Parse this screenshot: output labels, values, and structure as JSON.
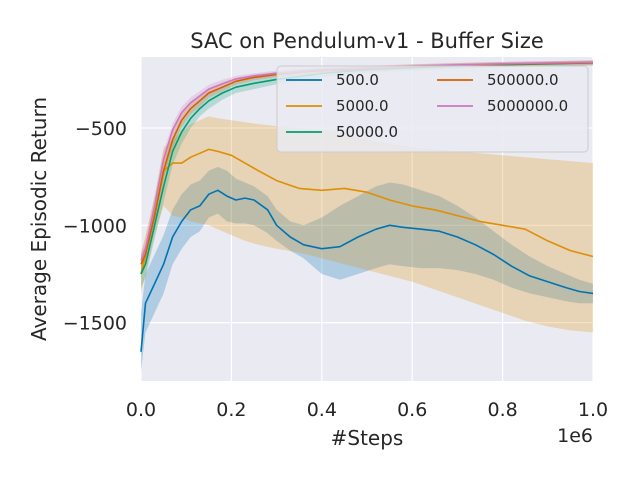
{
  "chart_data": {
    "type": "line",
    "title": "SAC on Pendulum-v1 - Buffer Size",
    "xlabel": "#Steps",
    "ylabel": "Average Episodic Return",
    "x_multiplier_label": "1e6",
    "xlim": [
      0.0,
      1.0
    ],
    "ylim": [
      -1800,
      -135
    ],
    "xticks": [
      0.0,
      0.2,
      0.4,
      0.6,
      0.8,
      1.0
    ],
    "xtick_labels": [
      "0.0",
      "0.2",
      "0.4",
      "0.6",
      "0.8",
      "1.0"
    ],
    "yticks": [
      -500,
      -1000,
      -1500
    ],
    "ytick_labels": [
      "−500",
      "−1000",
      "−1500"
    ],
    "legend_position": "top-right",
    "grid": true,
    "series": [
      {
        "name": "500.0",
        "color": "#0173b2",
        "x": [
          0.0,
          0.01,
          0.03,
          0.05,
          0.07,
          0.09,
          0.11,
          0.13,
          0.15,
          0.17,
          0.19,
          0.21,
          0.23,
          0.25,
          0.28,
          0.3,
          0.33,
          0.36,
          0.4,
          0.44,
          0.48,
          0.52,
          0.55,
          0.58,
          0.62,
          0.66,
          0.7,
          0.74,
          0.78,
          0.82,
          0.86,
          0.9,
          0.94,
          0.97,
          1.0
        ],
        "y": [
          -1650,
          -1400,
          -1300,
          -1200,
          -1060,
          -980,
          -920,
          -900,
          -840,
          -820,
          -850,
          -870,
          -860,
          -870,
          -920,
          -1000,
          -1060,
          -1100,
          -1120,
          -1110,
          -1060,
          -1020,
          -1000,
          -1010,
          -1020,
          -1030,
          -1060,
          -1100,
          -1150,
          -1210,
          -1260,
          -1290,
          -1320,
          -1340,
          -1350
        ],
        "band_upper": [
          -1450,
          -1250,
          -1150,
          -1050,
          -920,
          -840,
          -790,
          -770,
          -720,
          -700,
          -720,
          -760,
          -780,
          -800,
          -850,
          -920,
          -980,
          -1000,
          -960,
          -900,
          -850,
          -800,
          -780,
          -790,
          -820,
          -850,
          -900,
          -960,
          -1030,
          -1100,
          -1160,
          -1210,
          -1250,
          -1280,
          -1300
        ],
        "band_lower": [
          -1750,
          -1550,
          -1450,
          -1350,
          -1200,
          -1120,
          -1060,
          -1030,
          -960,
          -940,
          -980,
          -990,
          -990,
          -1000,
          -1040,
          -1080,
          -1130,
          -1170,
          -1250,
          -1280,
          -1250,
          -1220,
          -1200,
          -1210,
          -1220,
          -1220,
          -1230,
          -1250,
          -1280,
          -1320,
          -1350,
          -1370,
          -1390,
          -1400,
          -1400
        ]
      },
      {
        "name": "5000.0",
        "color": "#de8f05",
        "x": [
          0.0,
          0.01,
          0.03,
          0.05,
          0.07,
          0.09,
          0.11,
          0.13,
          0.15,
          0.17,
          0.2,
          0.23,
          0.26,
          0.3,
          0.35,
          0.4,
          0.45,
          0.5,
          0.55,
          0.6,
          0.65,
          0.7,
          0.75,
          0.8,
          0.85,
          0.9,
          0.95,
          1.0
        ],
        "y": [
          -1250,
          -1150,
          -950,
          -720,
          -680,
          -680,
          -650,
          -630,
          -610,
          -620,
          -640,
          -680,
          -720,
          -770,
          -810,
          -820,
          -810,
          -830,
          -870,
          -900,
          -920,
          -950,
          -980,
          -1000,
          -1020,
          -1080,
          -1130,
          -1160
        ],
        "band_upper": [
          -1150,
          -1050,
          -850,
          -600,
          -560,
          -520,
          -480,
          -460,
          -440,
          -450,
          -460,
          -470,
          -480,
          -490,
          -500,
          -510,
          -530,
          -560,
          -580,
          -600,
          -610,
          -620,
          -630,
          -640,
          -650,
          -660,
          -670,
          -680
        ],
        "band_lower": [
          -1350,
          -1250,
          -1050,
          -900,
          -950,
          -960,
          -980,
          -990,
          -1000,
          -1020,
          -1050,
          -1080,
          -1100,
          -1120,
          -1140,
          -1170,
          -1200,
          -1230,
          -1260,
          -1290,
          -1330,
          -1370,
          -1410,
          -1450,
          -1490,
          -1520,
          -1540,
          -1550
        ]
      },
      {
        "name": "50000.0",
        "color": "#029e73",
        "x": [
          0.0,
          0.01,
          0.03,
          0.05,
          0.07,
          0.09,
          0.11,
          0.13,
          0.15,
          0.18,
          0.21,
          0.25,
          0.3,
          0.35,
          0.4,
          0.5,
          0.6,
          0.7,
          0.8,
          0.9,
          1.0
        ],
        "y": [
          -1250,
          -1200,
          -1000,
          -800,
          -620,
          -520,
          -450,
          -400,
          -360,
          -320,
          -290,
          -270,
          -250,
          -235,
          -220,
          -200,
          -190,
          -180,
          -175,
          -170,
          -165
        ],
        "band_upper": [
          -1180,
          -1130,
          -930,
          -720,
          -560,
          -470,
          -410,
          -365,
          -325,
          -290,
          -265,
          -245,
          -230,
          -215,
          -205,
          -190,
          -180,
          -170,
          -165,
          -160,
          -155
        ],
        "band_lower": [
          -1320,
          -1270,
          -1070,
          -880,
          -690,
          -580,
          -500,
          -440,
          -400,
          -355,
          -320,
          -300,
          -275,
          -260,
          -240,
          -215,
          -205,
          -195,
          -188,
          -182,
          -178
        ]
      },
      {
        "name": "500000.0",
        "color": "#d55e00",
        "x": [
          0.0,
          0.01,
          0.03,
          0.05,
          0.07,
          0.09,
          0.11,
          0.13,
          0.15,
          0.18,
          0.21,
          0.25,
          0.3,
          0.35,
          0.4,
          0.5,
          0.6,
          0.7,
          0.8,
          0.9,
          1.0
        ],
        "y": [
          -1200,
          -1150,
          -950,
          -720,
          -560,
          -460,
          -400,
          -360,
          -320,
          -290,
          -260,
          -240,
          -225,
          -212,
          -205,
          -195,
          -185,
          -178,
          -172,
          -168,
          -165
        ],
        "band_upper": [
          -1150,
          -1100,
          -900,
          -680,
          -520,
          -425,
          -370,
          -330,
          -295,
          -268,
          -242,
          -225,
          -212,
          -200,
          -193,
          -183,
          -173,
          -166,
          -160,
          -156,
          -152
        ],
        "band_lower": [
          -1250,
          -1200,
          -1000,
          -760,
          -600,
          -495,
          -430,
          -390,
          -345,
          -312,
          -278,
          -255,
          -238,
          -224,
          -217,
          -207,
          -197,
          -190,
          -184,
          -180,
          -178
        ]
      },
      {
        "name": "5000000.0",
        "color": "#cc78bc",
        "x": [
          0.0,
          0.01,
          0.03,
          0.05,
          0.07,
          0.09,
          0.11,
          0.13,
          0.15,
          0.18,
          0.21,
          0.25,
          0.3,
          0.35,
          0.4,
          0.5,
          0.6,
          0.7,
          0.8,
          0.9,
          1.0
        ],
        "y": [
          -1180,
          -1120,
          -900,
          -660,
          -510,
          -420,
          -370,
          -335,
          -300,
          -272,
          -248,
          -232,
          -218,
          -208,
          -200,
          -190,
          -182,
          -176,
          -170,
          -166,
          -162
        ],
        "band_upper": [
          -1130,
          -1070,
          -850,
          -620,
          -475,
          -390,
          -342,
          -310,
          -278,
          -252,
          -232,
          -218,
          -205,
          -196,
          -189,
          -180,
          -172,
          -166,
          -160,
          -156,
          -152
        ],
        "band_lower": [
          -1230,
          -1170,
          -950,
          -700,
          -545,
          -450,
          -398,
          -360,
          -322,
          -292,
          -264,
          -246,
          -231,
          -220,
          -211,
          -200,
          -192,
          -186,
          -180,
          -176,
          -172
        ]
      }
    ]
  }
}
